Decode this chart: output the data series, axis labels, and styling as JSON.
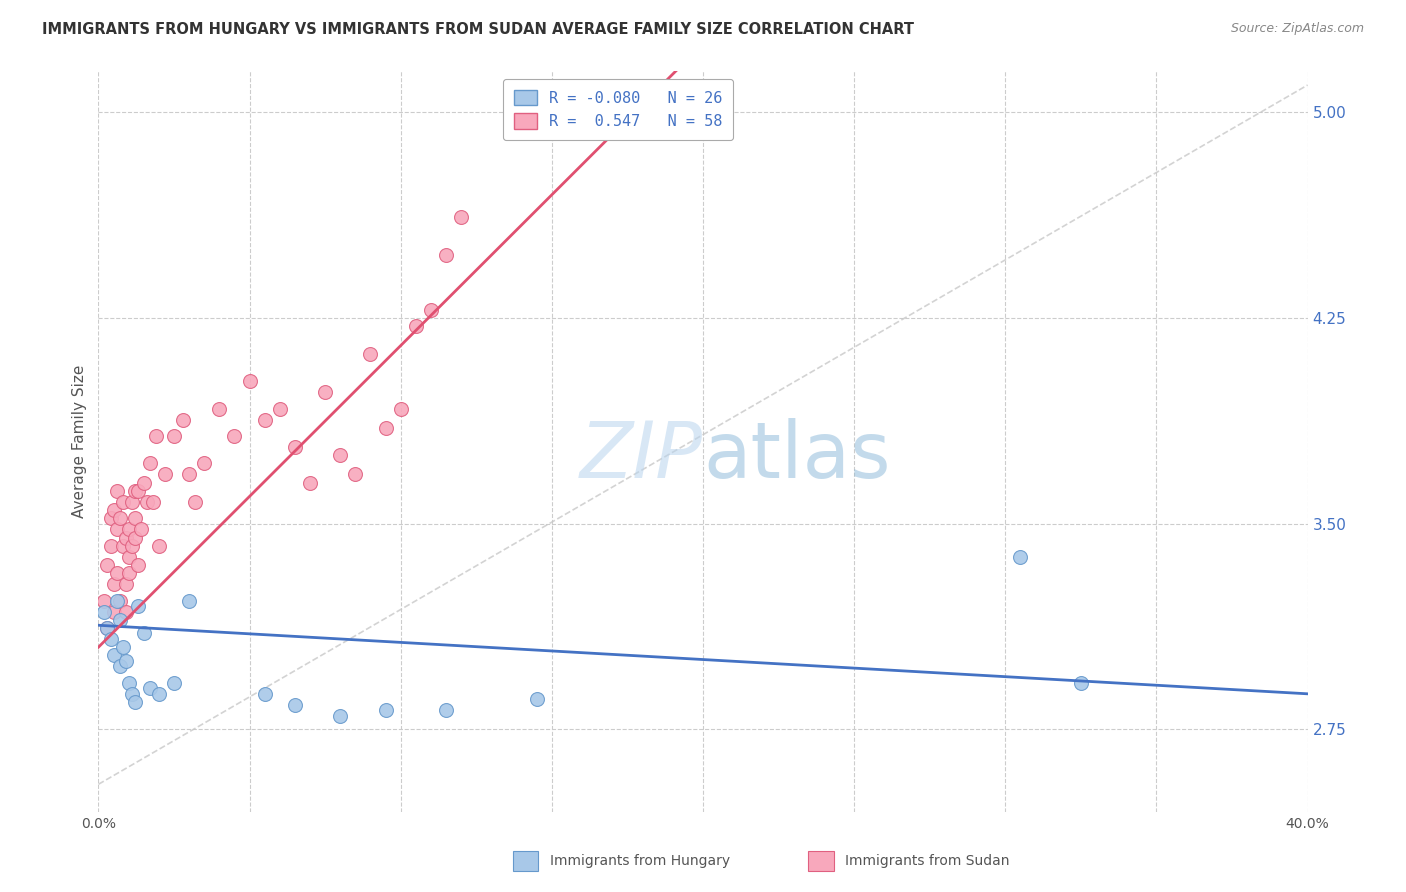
{
  "title": "IMMIGRANTS FROM HUNGARY VS IMMIGRANTS FROM SUDAN AVERAGE FAMILY SIZE CORRELATION CHART",
  "source": "Source: ZipAtlas.com",
  "ylabel": "Average Family Size",
  "xlim": [
    0.0,
    0.4
  ],
  "ylim": [
    2.45,
    5.15
  ],
  "yticks": [
    2.75,
    3.5,
    4.25,
    5.0
  ],
  "xticks": [
    0.0,
    0.05,
    0.1,
    0.15,
    0.2,
    0.25,
    0.3,
    0.35,
    0.4
  ],
  "hungary_color": "#a8c8e8",
  "sudan_color": "#f8a8bc",
  "hungary_edge": "#6699cc",
  "sudan_edge": "#e06080",
  "hungary_line_color": "#4472c4",
  "sudan_line_color": "#e05070",
  "diag_color": "#c8c8c8",
  "legend_hungary_r": "-0.080",
  "legend_hungary_n": "26",
  "legend_sudan_r": "0.547",
  "legend_sudan_n": "58",
  "background_color": "#ffffff",
  "grid_color": "#cccccc",
  "hungary_x": [
    0.002,
    0.003,
    0.004,
    0.005,
    0.006,
    0.007,
    0.007,
    0.008,
    0.009,
    0.01,
    0.011,
    0.012,
    0.013,
    0.015,
    0.017,
    0.02,
    0.025,
    0.03,
    0.055,
    0.065,
    0.08,
    0.095,
    0.115,
    0.145,
    0.305,
    0.325
  ],
  "hungary_y": [
    3.18,
    3.12,
    3.08,
    3.02,
    3.22,
    3.15,
    2.98,
    3.05,
    3.0,
    2.92,
    2.88,
    2.85,
    3.2,
    3.1,
    2.9,
    2.88,
    2.92,
    3.22,
    2.88,
    2.84,
    2.8,
    2.82,
    2.82,
    2.86,
    3.38,
    2.92
  ],
  "sudan_x": [
    0.002,
    0.003,
    0.003,
    0.004,
    0.004,
    0.005,
    0.005,
    0.005,
    0.006,
    0.006,
    0.006,
    0.007,
    0.007,
    0.008,
    0.008,
    0.009,
    0.009,
    0.009,
    0.01,
    0.01,
    0.01,
    0.011,
    0.011,
    0.012,
    0.012,
    0.012,
    0.013,
    0.013,
    0.014,
    0.015,
    0.016,
    0.017,
    0.018,
    0.019,
    0.02,
    0.022,
    0.025,
    0.028,
    0.03,
    0.032,
    0.035,
    0.04,
    0.045,
    0.05,
    0.055,
    0.06,
    0.065,
    0.07,
    0.075,
    0.08,
    0.085,
    0.09,
    0.095,
    0.1,
    0.105,
    0.11,
    0.115,
    0.12
  ],
  "sudan_y": [
    3.22,
    3.35,
    3.12,
    3.42,
    3.52,
    3.28,
    3.55,
    3.18,
    3.62,
    3.32,
    3.48,
    3.22,
    3.52,
    3.42,
    3.58,
    3.28,
    3.18,
    3.45,
    3.32,
    3.48,
    3.38,
    3.58,
    3.42,
    3.52,
    3.45,
    3.62,
    3.35,
    3.62,
    3.48,
    3.65,
    3.58,
    3.72,
    3.58,
    3.82,
    3.42,
    3.68,
    3.82,
    3.88,
    3.68,
    3.58,
    3.72,
    3.92,
    3.82,
    4.02,
    3.88,
    3.92,
    3.78,
    3.65,
    3.98,
    3.75,
    3.68,
    4.12,
    3.85,
    3.92,
    4.22,
    4.28,
    4.48,
    4.62
  ],
  "marker_size": 100,
  "watermark": "ZIPatlas"
}
